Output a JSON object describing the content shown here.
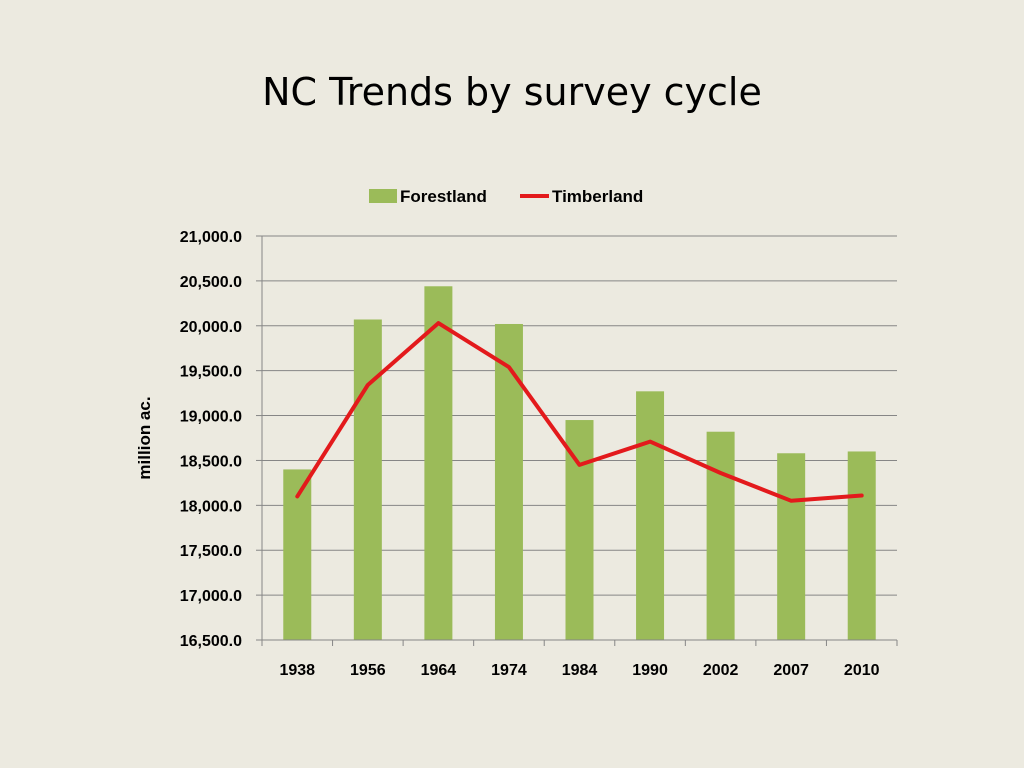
{
  "slide": {
    "title": "NC Trends by survey cycle"
  },
  "chart_data": {
    "type": "bar",
    "title": "",
    "xlabel": "",
    "ylabel": "million ac.",
    "categories": [
      "1938",
      "1956",
      "1964",
      "1974",
      "1984",
      "1990",
      "2002",
      "2007",
      "2010"
    ],
    "ylim": [
      16500,
      21000
    ],
    "yticks": [
      16500,
      17000,
      17500,
      18000,
      18500,
      19000,
      19500,
      20000,
      20500,
      21000
    ],
    "ytick_labels": [
      "16,500.0",
      "17,000.0",
      "17,500.0",
      "18,000.0",
      "18,500.0",
      "19,000.0",
      "19,500.0",
      "20,000.0",
      "20,500.0",
      "21,000.0"
    ],
    "grid": true,
    "legend_position": "top",
    "series": [
      {
        "name": "Forestland",
        "type": "bar",
        "color": "#9BBB59",
        "values": [
          18400,
          20070,
          20440,
          20020,
          18950,
          19270,
          18820,
          18580,
          18600
        ]
      },
      {
        "name": "Timberland",
        "type": "line",
        "color": "#E31A1C",
        "values": [
          18100,
          19340,
          20030,
          19540,
          18450,
          18710,
          18360,
          18050,
          18110
        ]
      }
    ]
  }
}
